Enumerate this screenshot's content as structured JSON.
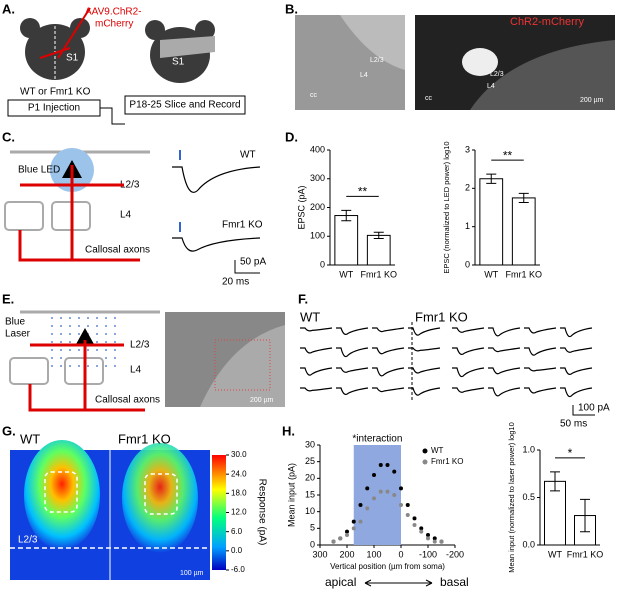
{
  "panels": {
    "A": {
      "label": "A.",
      "virus1": "AAV9.ChR2-",
      "virus2": "mCherry",
      "region": "S1",
      "region2": "S1",
      "genotype": "WT or Fmr1 KO",
      "injection": "P1 Injection",
      "record": "P18-25 Slice and Record"
    },
    "B": {
      "label": "B.",
      "cc": "cc",
      "l23": "L2/3",
      "l4": "L4",
      "chr2": "ChR2-mCherry",
      "cc2": "cc",
      "l23b": "L2/3",
      "l4b": "L4",
      "scale": "200 µm"
    },
    "C": {
      "label": "C.",
      "led": "Blue LED",
      "l23": "L2/3",
      "l4": "L4",
      "axons": "Callosal axons",
      "wt": "WT",
      "ko": "Fmr1 KO",
      "scale_y": "50 pA",
      "scale_x": "20 ms"
    },
    "E": {
      "label": "E.",
      "laser1": "Blue",
      "laser2": "Laser",
      "l23": "L2/3",
      "l4": "L4",
      "axons": "Callosal axons",
      "scale": "200 µm"
    },
    "F": {
      "label": "F.",
      "wt": "WT",
      "ko": "Fmr1 KO",
      "scale_y": "100 pA",
      "scale_x": "50 ms"
    },
    "G": {
      "label": "G.",
      "wt": "WT",
      "ko": "Fmr1 KO",
      "l23": "L2/3",
      "scale": "100 µm",
      "colorbar_label": "Response (pA)",
      "colorbar_ticks": [
        {
          "value": 30,
          "label": "30.0"
        },
        {
          "value": 24,
          "label": "24.0"
        },
        {
          "value": 18,
          "label": "18.0"
        },
        {
          "value": 12,
          "label": "12.0"
        },
        {
          "value": 6,
          "label": "6.0"
        },
        {
          "value": 0,
          "label": "0.0"
        },
        {
          "value": -6,
          "label": "-6.0"
        }
      ]
    },
    "D": {
      "label": "D."
    },
    "H": {
      "label": "H.",
      "apical": "apical",
      "basal": "basal"
    }
  },
  "chart_data": [
    {
      "type": "bar",
      "ylabel": "EPSC (pA)",
      "categories": [
        "WT",
        "Fmr1 KO"
      ],
      "values": [
        172,
        103
      ],
      "errors": [
        18,
        11
      ],
      "colors": [
        "#ffffff",
        "#ffffff"
      ],
      "ylim": [
        0,
        400
      ],
      "yticks": [
        0,
        100,
        200,
        300,
        400
      ],
      "annotation": "**"
    },
    {
      "type": "bar",
      "ylabel": "EPSC (normalized to LED power) log10",
      "categories": [
        "WT",
        "Fmr1 KO"
      ],
      "values": [
        2.25,
        1.75
      ],
      "errors": [
        0.12,
        0.12
      ],
      "colors": [
        "#ffffff",
        "#ffffff"
      ],
      "ylim": [
        0,
        3
      ],
      "yticks": [
        0,
        1,
        2,
        3
      ],
      "annotation": "**"
    },
    {
      "type": "line",
      "ylabel": "Mean input (pA)",
      "xlabel": "Vertical position (µm from soma)",
      "annotation": "*interaction",
      "shade": [
        175,
        0
      ],
      "x": [
        250,
        225,
        200,
        175,
        150,
        125,
        100,
        75,
        50,
        25,
        0,
        -25,
        -50,
        -75,
        -100,
        -125,
        -150
      ],
      "series": [
        {
          "name": "WT",
          "color": "#000000",
          "values": [
            1,
            2,
            4,
            7,
            12,
            17,
            21,
            24,
            24,
            22,
            17,
            12,
            8,
            5,
            3,
            2,
            1
          ]
        },
        {
          "name": "Fmr1 KO",
          "color": "#888888",
          "values": [
            1,
            2,
            3,
            5,
            7,
            11,
            14,
            16,
            16,
            15,
            12,
            9,
            6,
            4,
            2,
            1,
            1
          ]
        }
      ],
      "xlim": [
        300,
        -200
      ],
      "xticks": [
        300,
        200,
        100,
        0,
        -100,
        -200
      ],
      "ylim": [
        0,
        30
      ],
      "yticks": [
        0,
        5,
        10,
        15,
        20,
        25,
        30
      ]
    },
    {
      "type": "bar",
      "ylabel": "Mean input (normalized to laser power) log10",
      "categories": [
        "WT",
        "Fmr1 KO"
      ],
      "values": [
        0.67,
        0.31
      ],
      "errors": [
        0.1,
        0.17
      ],
      "colors": [
        "#ffffff",
        "#ffffff"
      ],
      "ylim": [
        0,
        1
      ],
      "yticks": [
        {
          "value": 0,
          "label": "0.0"
        },
        {
          "value": 0.5,
          "label": "0.5"
        },
        {
          "value": 1,
          "label": "1.0"
        }
      ],
      "annotation": "*"
    }
  ]
}
